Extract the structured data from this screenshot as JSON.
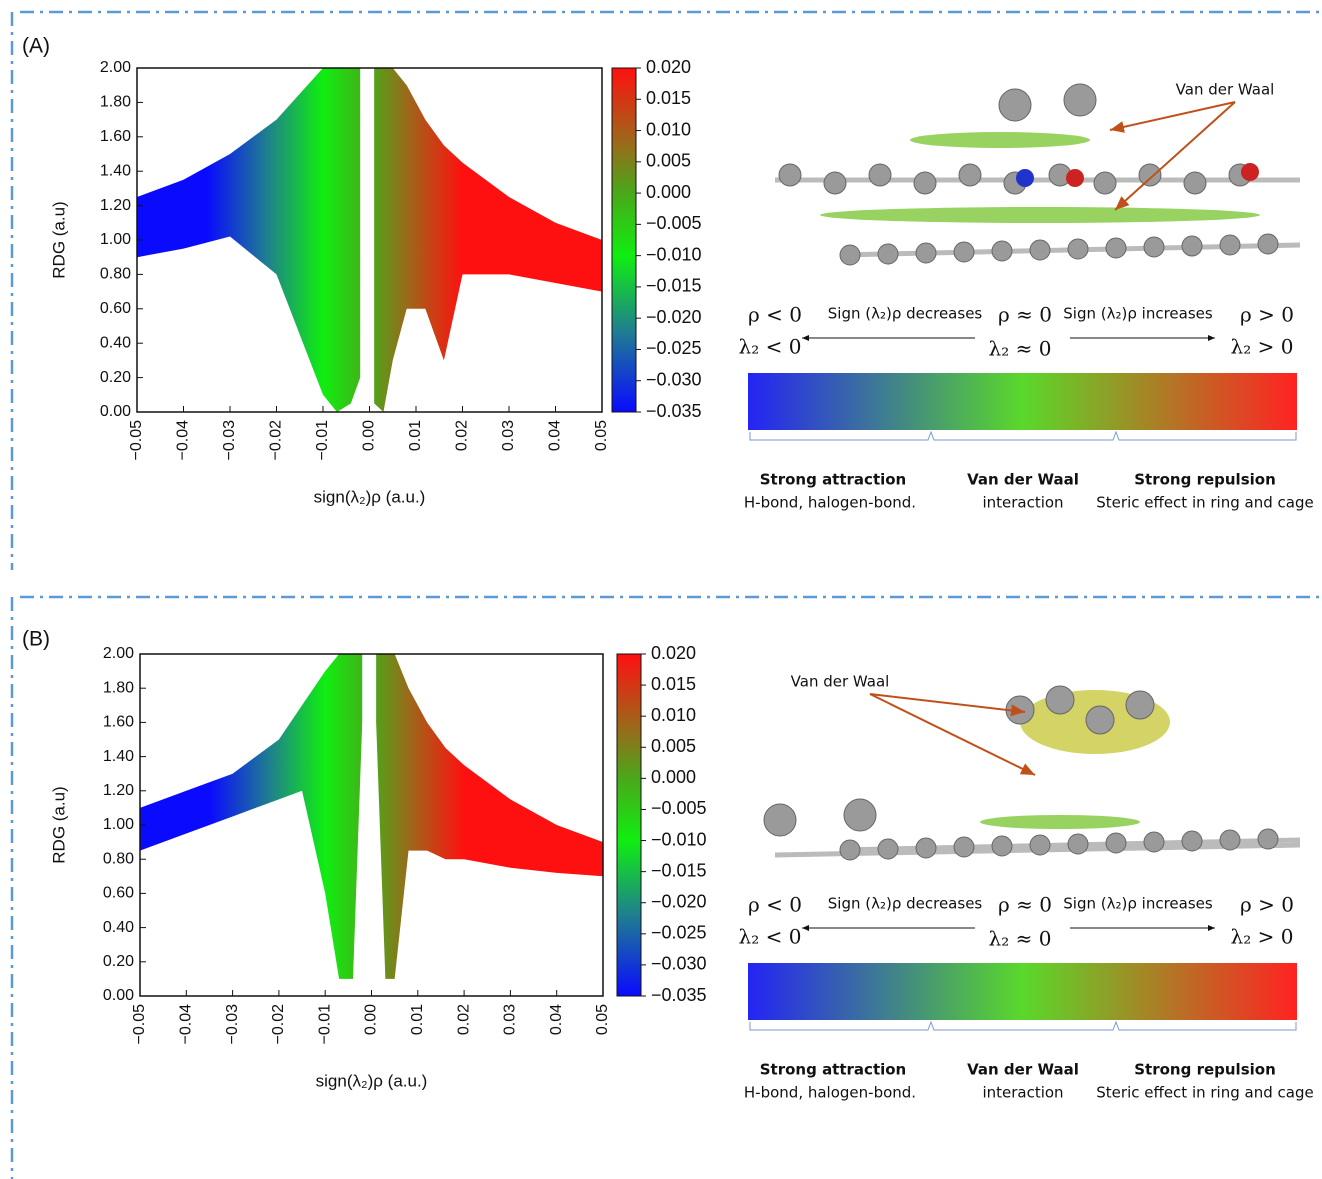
{
  "chart_data": [
    {
      "type": "band",
      "xlabel": "sign(λ₂)ρ (a.u.)",
      "ylabel": "RDG (a.u)",
      "x": [
        -0.05,
        -0.04,
        -0.03,
        -0.02,
        -0.015,
        -0.01,
        -0.007,
        -0.004,
        -0.002,
        0,
        0.001,
        0.003,
        0.005,
        0.008,
        0.012,
        0.016,
        0.02,
        0.03,
        0.04,
        0.05
      ],
      "upper": [
        1.25,
        1.35,
        1.5,
        1.7,
        1.85,
        2.0,
        2.0,
        2.0,
        2.0,
        null,
        2.0,
        2.0,
        2.0,
        1.9,
        1.7,
        1.55,
        1.45,
        1.25,
        1.1,
        1.0
      ],
      "lower": [
        0.9,
        0.95,
        1.02,
        0.8,
        0.45,
        0.1,
        0.0,
        0.05,
        0.2,
        null,
        0.05,
        0.0,
        0.3,
        0.6,
        0.6,
        0.3,
        0.8,
        0.8,
        0.75,
        0.7
      ],
      "xlim": [
        -0.05,
        0.05
      ],
      "ylim": [
        0,
        2
      ],
      "xticks": [
        {
          "value": -0.05,
          "label": "−0.05"
        },
        {
          "value": -0.04,
          "label": "−0.04"
        },
        {
          "value": -0.03,
          "label": "−0.03"
        },
        {
          "value": -0.02,
          "label": "−0.02"
        },
        {
          "value": -0.01,
          "label": "−0.01"
        },
        {
          "value": 0,
          "label": "0.00"
        },
        {
          "value": 0.01,
          "label": "0.01"
        },
        {
          "value": 0.02,
          "label": "0.02"
        },
        {
          "value": 0.03,
          "label": "0.03"
        },
        {
          "value": 0.04,
          "label": "0.04"
        },
        {
          "value": 0.05,
          "label": "0.05"
        }
      ],
      "yticks": [
        {
          "value": 0,
          "label": "0.00"
        },
        {
          "value": 0.2,
          "label": "0.20"
        },
        {
          "value": 0.4,
          "label": "0.40"
        },
        {
          "value": 0.6,
          "label": "0.60"
        },
        {
          "value": 0.8,
          "label": "0.80"
        },
        {
          "value": 1,
          "label": "1.00"
        },
        {
          "value": 1.2,
          "label": "1.20"
        },
        {
          "value": 1.4,
          "label": "1.40"
        },
        {
          "value": 1.6,
          "label": "1.60"
        },
        {
          "value": 1.8,
          "label": "1.80"
        },
        {
          "value": 2,
          "label": "2.00"
        }
      ],
      "colorbar": {
        "lim": [
          -0.035,
          0.02
        ],
        "ticks": [
          {
            "value": 0.02,
            "label": "0.020"
          },
          {
            "value": 0.015,
            "label": "0.015"
          },
          {
            "value": 0.01,
            "label": "0.010"
          },
          {
            "value": 0.005,
            "label": "0.005"
          },
          {
            "value": 0,
            "label": "0.000"
          },
          {
            "value": -0.005,
            "label": "−0.005"
          },
          {
            "value": -0.01,
            "label": "−0.010"
          },
          {
            "value": -0.015,
            "label": "−0.015"
          },
          {
            "value": -0.02,
            "label": "−0.020"
          },
          {
            "value": -0.025,
            "label": "−0.025"
          },
          {
            "value": -0.03,
            "label": "−0.030"
          },
          {
            "value": -0.035,
            "label": "−0.035"
          }
        ],
        "stops": [
          {
            "value": -0.035,
            "color": "#0a0aff"
          },
          {
            "value": -0.022,
            "color": "#1f7f8f"
          },
          {
            "value": -0.01,
            "color": "#10ee10"
          },
          {
            "value": 0,
            "color": "#4aa81a"
          },
          {
            "value": 0.008,
            "color": "#9a6a1a"
          },
          {
            "value": 0.02,
            "color": "#ff1010"
          }
        ]
      }
    },
    {
      "type": "band",
      "xlabel": "sign(λ₂)ρ (a.u.)",
      "ylabel": "RDG (a.u)",
      "x": [
        -0.05,
        -0.04,
        -0.03,
        -0.02,
        -0.015,
        -0.01,
        -0.007,
        -0.004,
        -0.002,
        0,
        0.001,
        0.003,
        0.005,
        0.008,
        0.012,
        0.016,
        0.02,
        0.03,
        0.04,
        0.05
      ],
      "upper": [
        1.1,
        1.2,
        1.3,
        1.5,
        1.7,
        1.9,
        2.0,
        2.0,
        2.0,
        null,
        2.0,
        2.0,
        2.0,
        1.8,
        1.6,
        1.45,
        1.35,
        1.15,
        1.0,
        0.9
      ],
      "lower": [
        0.85,
        0.95,
        1.05,
        1.15,
        1.2,
        0.6,
        0.1,
        0.1,
        1.6,
        null,
        1.6,
        0.1,
        0.1,
        0.85,
        0.85,
        0.8,
        0.8,
        0.75,
        0.72,
        0.7
      ],
      "xlim": [
        -0.05,
        0.05
      ],
      "ylim": [
        0,
        2
      ],
      "xticks": [
        {
          "value": -0.05,
          "label": "−0.05"
        },
        {
          "value": -0.04,
          "label": "−0.04"
        },
        {
          "value": -0.03,
          "label": "−0.03"
        },
        {
          "value": -0.02,
          "label": "−0.02"
        },
        {
          "value": -0.01,
          "label": "−0.01"
        },
        {
          "value": 0,
          "label": "0.00"
        },
        {
          "value": 0.01,
          "label": "0.01"
        },
        {
          "value": 0.02,
          "label": "0.02"
        },
        {
          "value": 0.03,
          "label": "0.03"
        },
        {
          "value": 0.04,
          "label": "0.04"
        },
        {
          "value": 0.05,
          "label": "0.05"
        }
      ],
      "yticks": [
        {
          "value": 0,
          "label": "0.00"
        },
        {
          "value": 0.2,
          "label": "0.20"
        },
        {
          "value": 0.4,
          "label": "0.40"
        },
        {
          "value": 0.6,
          "label": "0.60"
        },
        {
          "value": 0.8,
          "label": "0.80"
        },
        {
          "value": 1,
          "label": "1.00"
        },
        {
          "value": 1.2,
          "label": "1.20"
        },
        {
          "value": 1.4,
          "label": "1.40"
        },
        {
          "value": 1.6,
          "label": "1.60"
        },
        {
          "value": 1.8,
          "label": "1.80"
        },
        {
          "value": 2,
          "label": "2.00"
        }
      ],
      "colorbar": {
        "lim": [
          -0.035,
          0.02
        ],
        "ticks": [
          {
            "value": 0.02,
            "label": "0.020"
          },
          {
            "value": 0.015,
            "label": "0.015"
          },
          {
            "value": 0.01,
            "label": "0.010"
          },
          {
            "value": 0.005,
            "label": "0.005"
          },
          {
            "value": 0,
            "label": "0.000"
          },
          {
            "value": -0.005,
            "label": "−0.005"
          },
          {
            "value": -0.01,
            "label": "−0.010"
          },
          {
            "value": -0.015,
            "label": "−0.015"
          },
          {
            "value": -0.02,
            "label": "−0.020"
          },
          {
            "value": -0.025,
            "label": "−0.025"
          },
          {
            "value": -0.03,
            "label": "−0.030"
          },
          {
            "value": -0.035,
            "label": "−0.035"
          }
        ],
        "stops": [
          {
            "value": -0.035,
            "color": "#0a0aff"
          },
          {
            "value": -0.022,
            "color": "#1f7f8f"
          },
          {
            "value": -0.01,
            "color": "#10ee10"
          },
          {
            "value": 0,
            "color": "#4aa81a"
          },
          {
            "value": 0.008,
            "color": "#9a6a1a"
          },
          {
            "value": 0.02,
            "color": "#ff1010"
          }
        ]
      }
    }
  ],
  "panels": [
    {
      "label": "(A)",
      "annotation": "Van der Waal",
      "legend": {
        "rho_neg": "ρ < 0",
        "decreases": "Sign (λ₂)ρ decreases",
        "rho_zero": "ρ ≈ 0",
        "increases": "Sign (λ₂)ρ increases",
        "rho_pos": "ρ > 0",
        "lam_neg": "λ₂ < 0",
        "lam_zero": "λ₂ ≈ 0",
        "lam_pos": "λ₂ > 0",
        "attraction": "Strong attraction",
        "attraction_desc": "H-bond, halogen-bond.",
        "vdw": "Van der Waal",
        "vdw_desc": "interaction",
        "repulsion": "Strong repulsion",
        "repulsion_desc": "Steric effect in ring and cage"
      }
    },
    {
      "label": "(B)",
      "annotation": "Van der Waal",
      "legend": {
        "rho_neg": "ρ < 0",
        "decreases": "Sign (λ₂)ρ decreases",
        "rho_zero": "ρ ≈ 0",
        "increases": "Sign (λ₂)ρ increases",
        "rho_pos": "ρ > 0",
        "lam_neg": "λ₂ < 0",
        "lam_zero": "λ₂ ≈ 0",
        "lam_pos": "λ₂ > 0",
        "attraction": "Strong attraction",
        "attraction_desc": "H-bond, halogen-bond.",
        "vdw": "Van der Waal",
        "vdw_desc": "interaction",
        "repulsion": "Strong repulsion",
        "repulsion_desc": "Steric effect in ring and cage"
      }
    }
  ]
}
